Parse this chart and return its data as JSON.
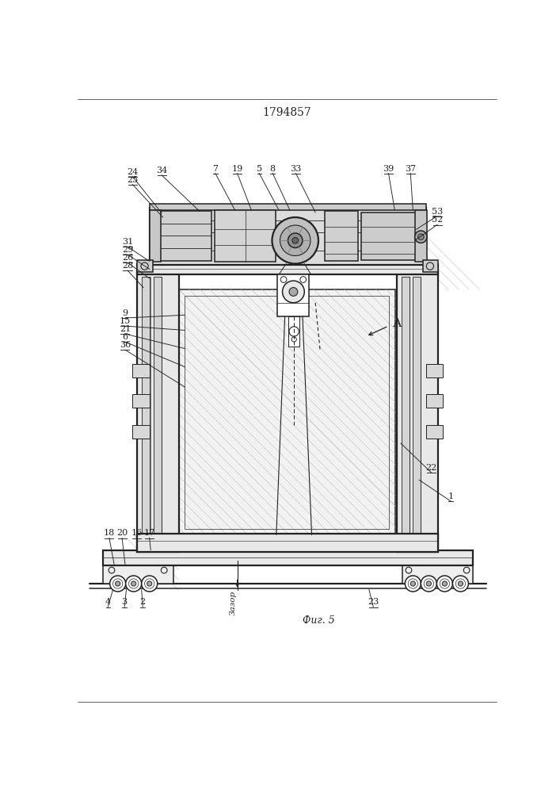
{
  "title": "1794857",
  "fig_label": "Фиг. 5",
  "zazor_label": "Зазор",
  "arrow_label": "А",
  "bg": "#ffffff",
  "lc": "#222222",
  "fig_w": 7.07,
  "fig_h": 10.0,
  "dpi": 100
}
